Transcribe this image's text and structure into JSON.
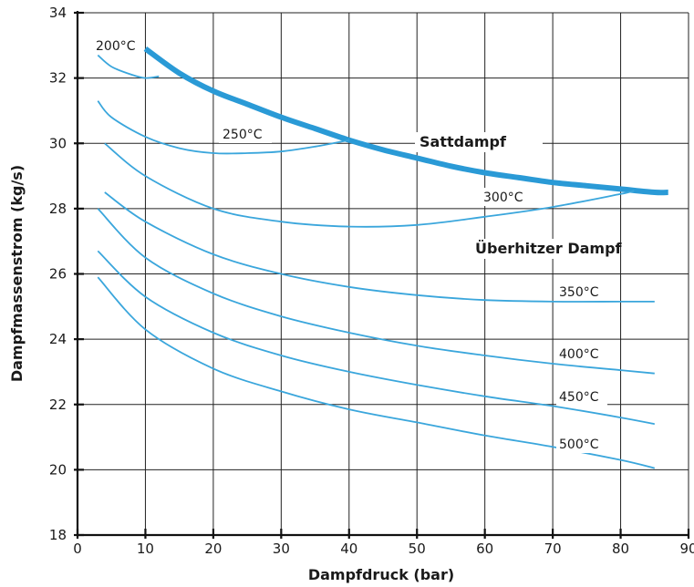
{
  "chart_data": {
    "type": "line",
    "xlabel": "Dampfdruck (bar)",
    "ylabel": "Dampfmassenstrom (kg/s)",
    "xlim": [
      0,
      90
    ],
    "ylim": [
      18,
      34
    ],
    "xticks": [
      0,
      10,
      20,
      30,
      40,
      50,
      60,
      70,
      80,
      90
    ],
    "yticks": [
      18,
      20,
      22,
      24,
      26,
      28,
      30,
      32,
      34
    ],
    "grid": true,
    "colors": {
      "curve": "#3aa6dc",
      "saturated": "#2a9ad6",
      "grid": "#222222"
    },
    "series": [
      {
        "name": "Sattdampf",
        "x": [
          10,
          15,
          20,
          25,
          30,
          35,
          40,
          45,
          50,
          55,
          60,
          65,
          70,
          75,
          80,
          85,
          87
        ],
        "y": [
          32.9,
          32.15,
          31.6,
          31.2,
          30.8,
          30.45,
          30.1,
          29.8,
          29.55,
          29.3,
          29.1,
          28.95,
          28.8,
          28.7,
          28.6,
          28.5,
          28.5
        ]
      },
      {
        "name": "200°C",
        "x": [
          3,
          5,
          8,
          10,
          12
        ],
        "y": [
          32.7,
          32.35,
          32.1,
          32.0,
          32.05
        ]
      },
      {
        "name": "250°C",
        "x": [
          3,
          5,
          10,
          15,
          20,
          25,
          30,
          35,
          40
        ],
        "y": [
          31.3,
          30.8,
          30.2,
          29.85,
          29.7,
          29.7,
          29.75,
          29.9,
          30.1
        ]
      },
      {
        "name": "300°C",
        "x": [
          4,
          10,
          20,
          30,
          40,
          50,
          60,
          70,
          80,
          82
        ],
        "y": [
          30.0,
          29.0,
          28.0,
          27.6,
          27.45,
          27.5,
          27.75,
          28.05,
          28.45,
          28.55
        ]
      },
      {
        "name": "350°C",
        "x": [
          4,
          10,
          20,
          30,
          40,
          50,
          60,
          70,
          80,
          85
        ],
        "y": [
          28.5,
          27.6,
          26.6,
          26.0,
          25.6,
          25.35,
          25.2,
          25.15,
          25.15,
          25.15
        ]
      },
      {
        "name": "400°C",
        "x": [
          3,
          10,
          20,
          30,
          40,
          50,
          60,
          70,
          80,
          85
        ],
        "y": [
          28.0,
          26.5,
          25.4,
          24.7,
          24.2,
          23.8,
          23.5,
          23.25,
          23.05,
          22.95
        ]
      },
      {
        "name": "450°C",
        "x": [
          3,
          10,
          20,
          30,
          40,
          50,
          60,
          70,
          80,
          85
        ],
        "y": [
          26.7,
          25.3,
          24.2,
          23.5,
          23.0,
          22.6,
          22.25,
          21.95,
          21.6,
          21.4
        ]
      },
      {
        "name": "500°C",
        "x": [
          3,
          10,
          20,
          30,
          40,
          50,
          60,
          70,
          80,
          85
        ],
        "y": [
          25.9,
          24.3,
          23.1,
          22.4,
          21.85,
          21.45,
          21.05,
          20.7,
          20.3,
          20.05
        ]
      }
    ],
    "annotations": {
      "t200": "200°C",
      "t250": "250°C",
      "saturated": "Sattdampf",
      "t300": "300°C",
      "superheated": "Überhitzer Dampf",
      "t350": "350°C",
      "t400": "400°C",
      "t450": "450°C",
      "t500": "500°C"
    }
  }
}
